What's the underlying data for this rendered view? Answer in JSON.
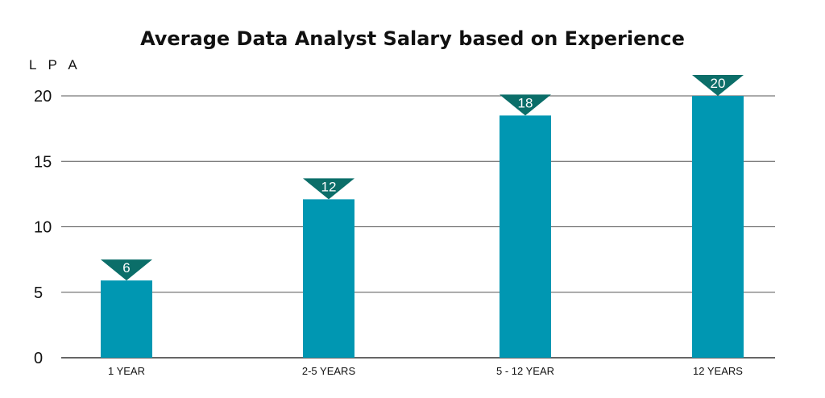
{
  "chart_data": {
    "type": "bar",
    "title": "Average Data Analyst Salary based on Experience",
    "ylabel": "L P A",
    "xlabel": "",
    "categories": [
      "1 YEAR",
      "2-5 YEARS",
      "5 - 12  YEAR",
      "12 YEARS"
    ],
    "values": [
      5.9,
      12.1,
      18.5,
      20
    ],
    "data_labels": [
      "6",
      "12",
      "18",
      "20"
    ],
    "yticks": [
      "0",
      "5",
      "10",
      "15",
      "20"
    ],
    "ylim": [
      0,
      20
    ],
    "grid": true,
    "legend": "none",
    "colors": {
      "bar": "#0097b2",
      "marker": "#0b6e69",
      "grid": "#555555",
      "axis": "#333333"
    }
  }
}
